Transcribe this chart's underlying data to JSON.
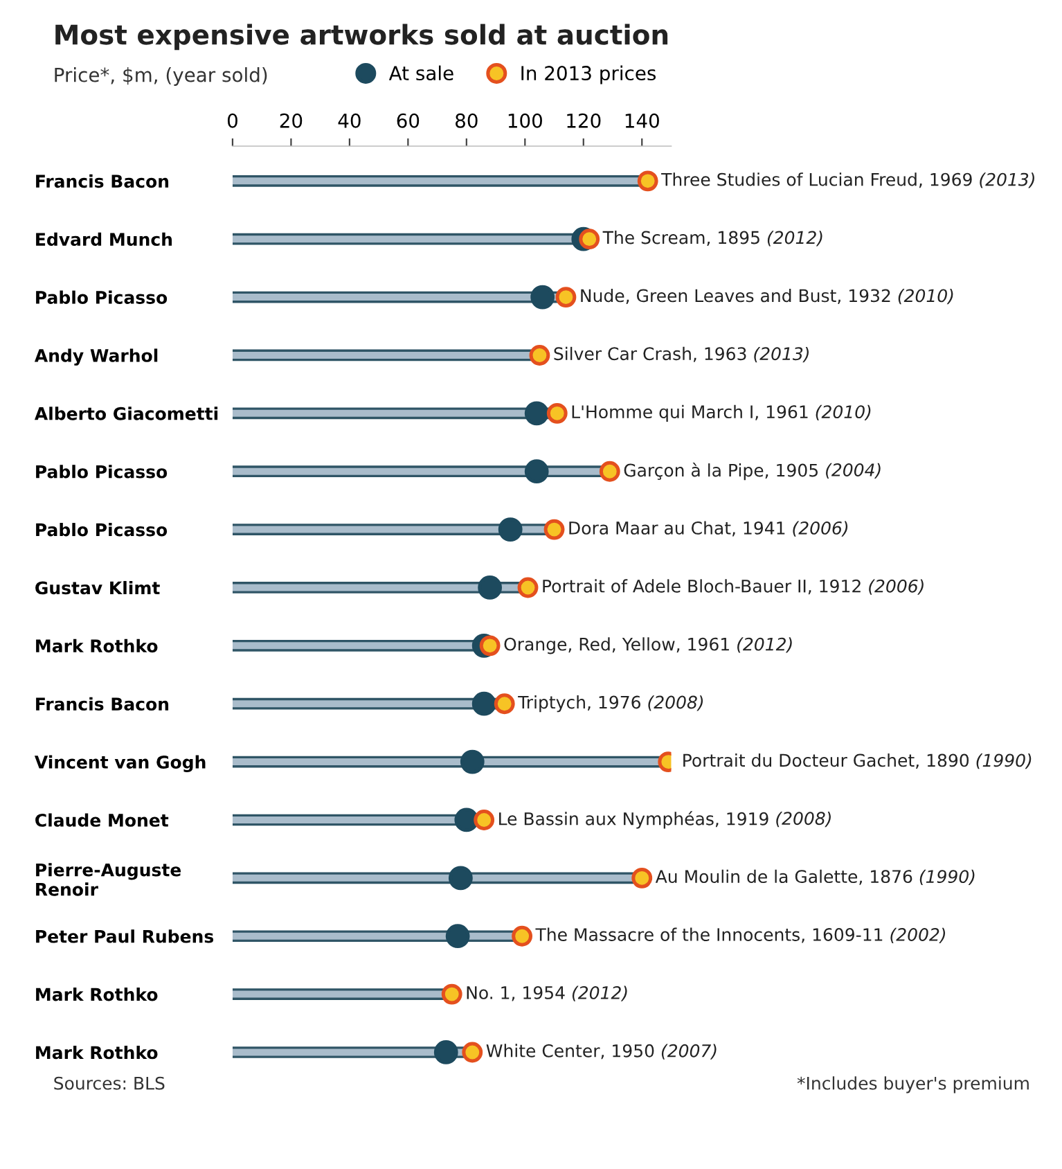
{
  "chart_data": {
    "type": "lollipop",
    "orientation": "horizontal",
    "title": "Most expensive artworks sold at auction",
    "subtitle": "Price*, $m, (year sold)",
    "categories": [
      "Francis Bacon",
      "Edvard Munch",
      "Pablo Picasso",
      "Andy Warhol",
      "Alberto Giacometti",
      "Pablo Picasso",
      "Pablo Picasso",
      "Gustav Klimt",
      "Mark Rothko",
      "Francis Bacon",
      "Vincent van Gogh",
      "Claude Monet",
      "Pierre-Auguste\nRenoir",
      "Peter Paul Rubens",
      "Mark Rothko",
      "Mark Rothko"
    ],
    "series": [
      {
        "name": "At sale",
        "color": "#1d4a5e",
        "values": [
          null,
          120,
          106,
          null,
          104,
          104,
          95,
          88,
          86,
          86,
          82,
          80,
          78,
          77,
          null,
          73
        ]
      },
      {
        "name": "In 2013 prices",
        "color": "#f7c325",
        "values": [
          142,
          122,
          114,
          105,
          111,
          129,
          110,
          101,
          88,
          93,
          149,
          86,
          140,
          99,
          75,
          82
        ],
        "value_labels": [
          "Three Studies of Lucian Freud, 1969 (2013)",
          "The Scream, 1895 (2012)",
          "Nude, Green Leaves and Bust, 1932 (2010)",
          "Silver Car Crash, 1963 (2013)",
          "L'Homme qui March I, 1961 (2010)",
          "Garçon à la Pipe, 1905 (2004)",
          "Dora Maar au Chat, 1941 (2006)",
          "Portrait of Adele Bloch-Bauer II, 1912 (2006)",
          "Orange, Red, Yellow, 1961 (2012)",
          "Triptych, 1976 (2008)",
          "Portrait du Docteur Gachet, 1890 (1990)",
          "Le Bassin aux Nymphéas, 1919 (2008)",
          "Au Moulin de la Galette, 1876 (1990)",
          "The Massacre of the Innocents, 1609-11 (2002)",
          "No. 1, 1954 (2012)",
          "White Center, 1950 (2007)"
        ]
      }
    ],
    "xlim": [
      0,
      150
    ],
    "xticks": [
      0,
      20,
      40,
      60,
      80,
      100,
      120,
      140
    ],
    "legend": "top",
    "grid": false,
    "marker": "circle",
    "annotations": [
      "Sources: BLS",
      "*Includes buyer's premium"
    ]
  }
}
